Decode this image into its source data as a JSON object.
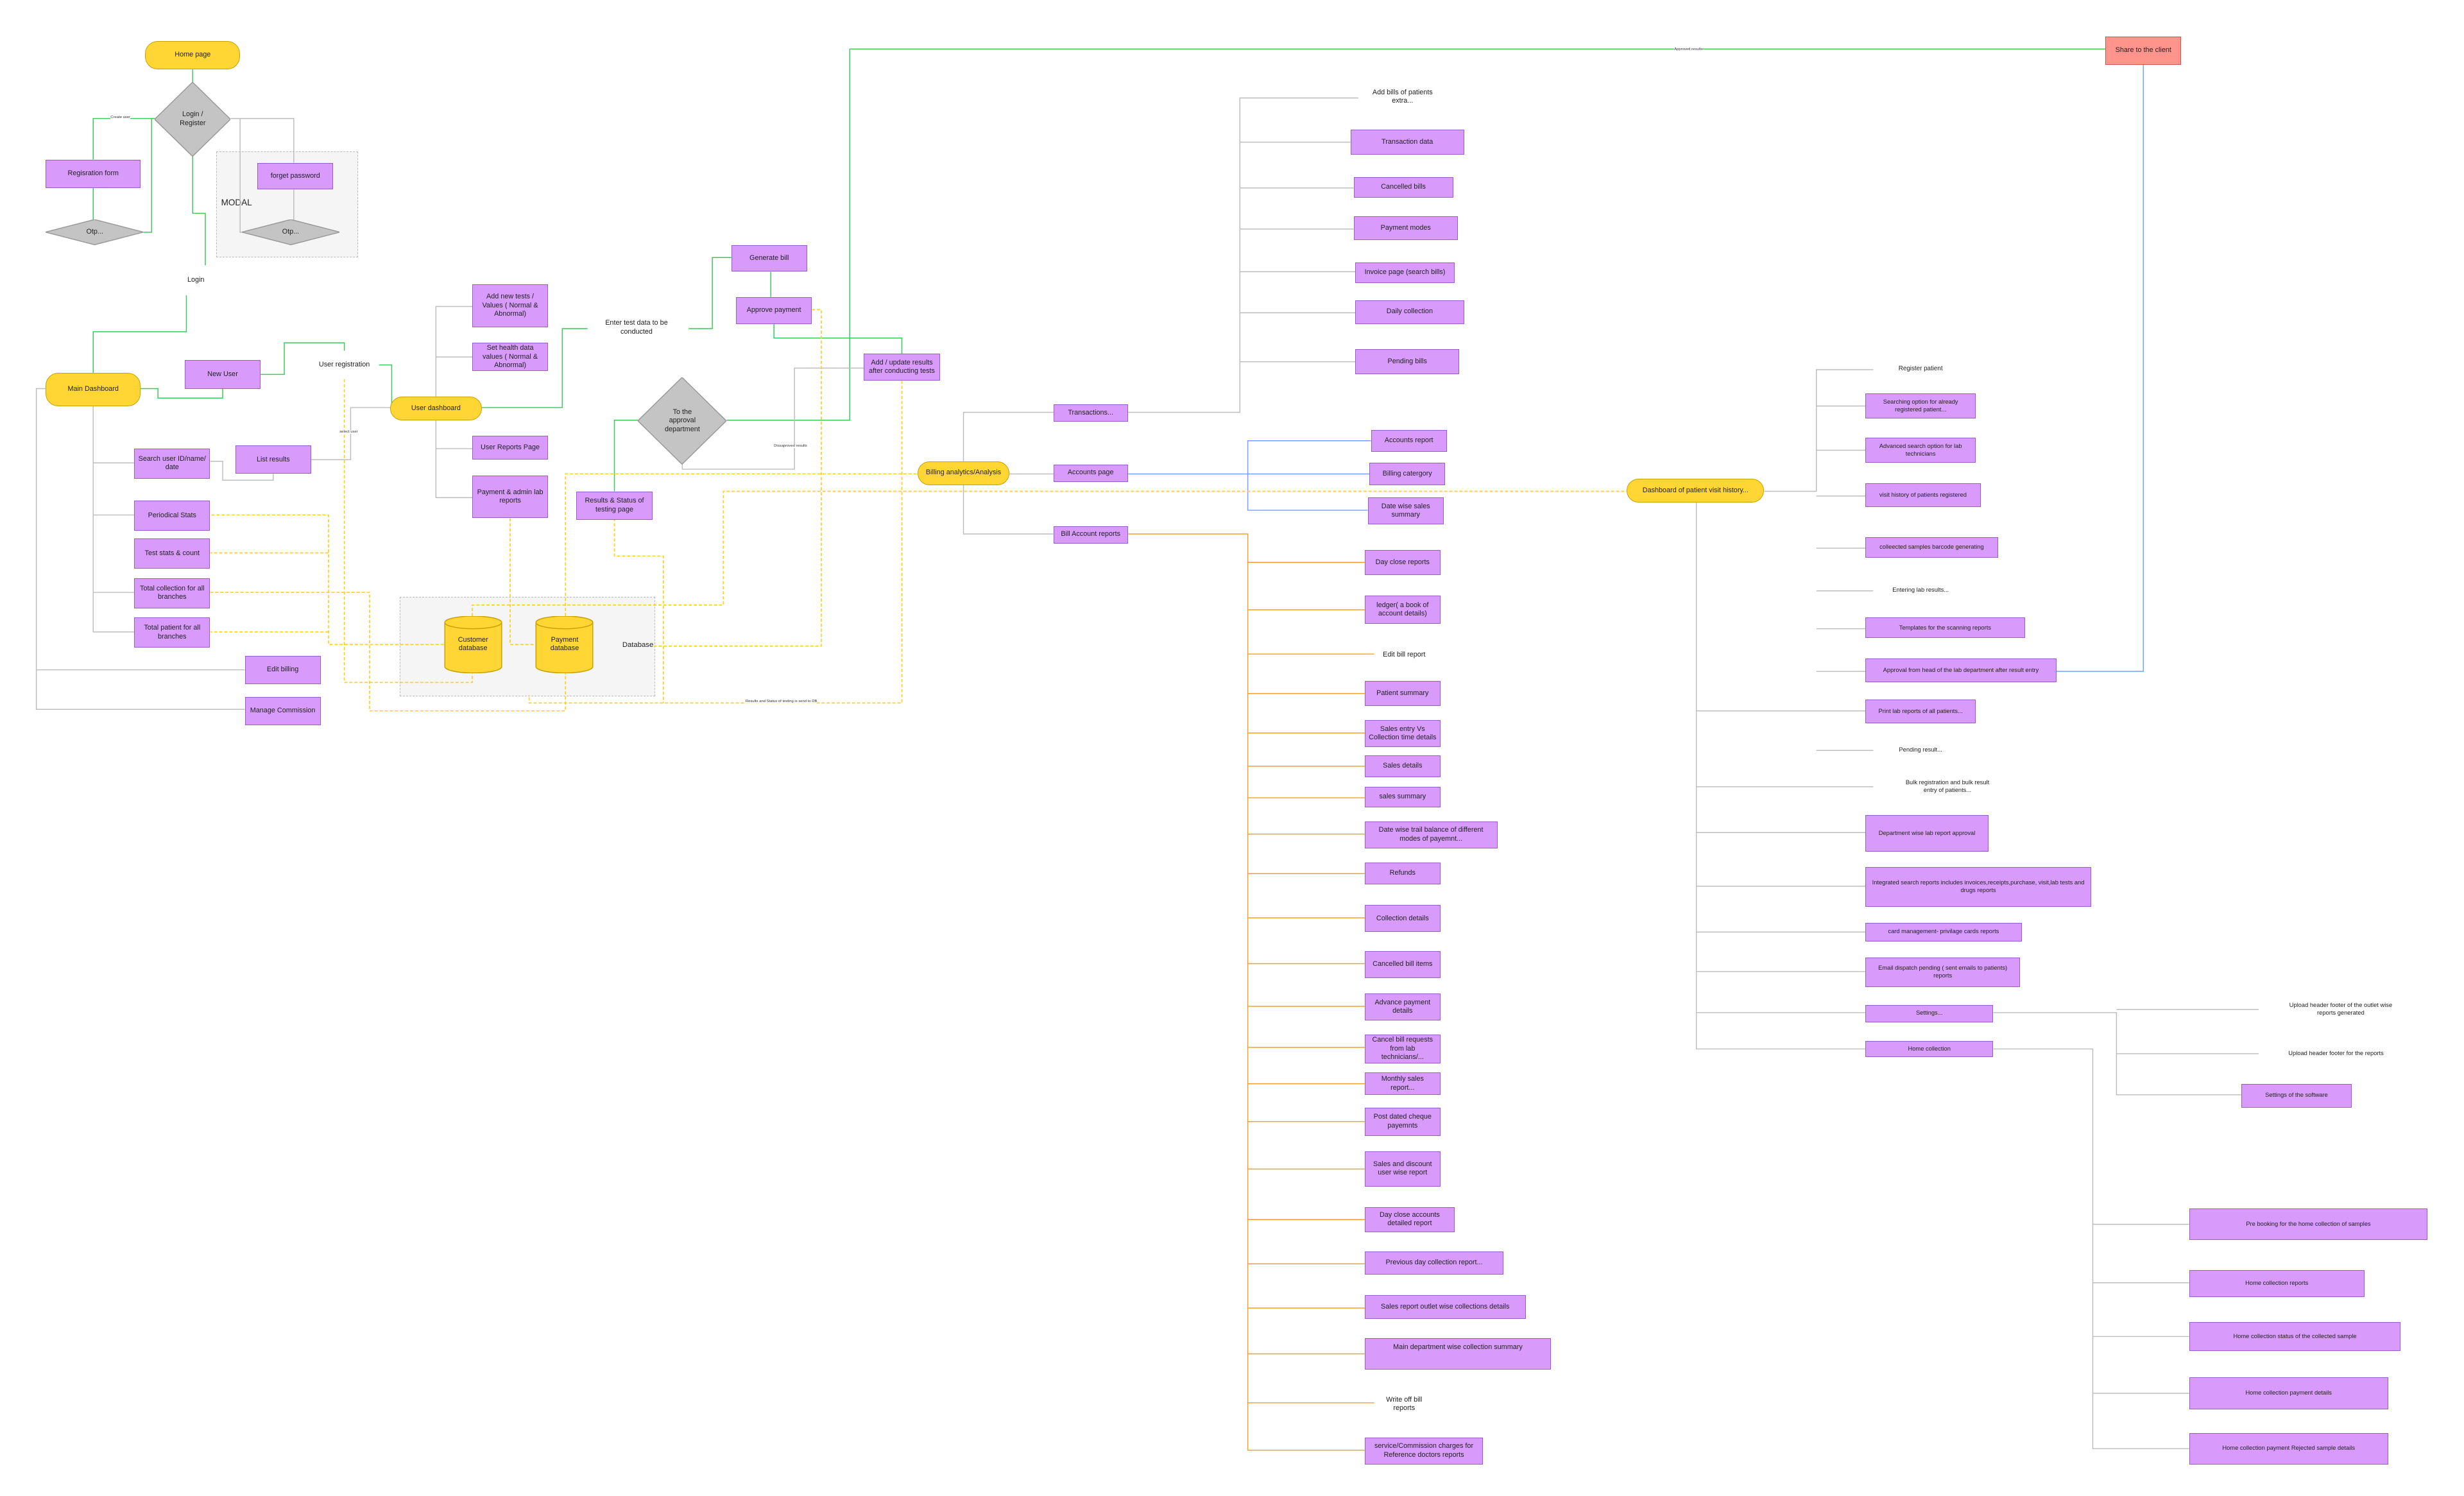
{
  "colors": {
    "process": "#d99bfb",
    "terminal": "#ffd633",
    "input_output": "#86b7ff",
    "decision": "#c4c4c4",
    "output": "#ff948c",
    "flow_green": "#3cc85a",
    "flow_gray": "#bdbdbd",
    "flow_orange": "#f0a030",
    "flow_blue": "#70a3ff",
    "data_flow_yellow_dashed": "#ffcf26"
  },
  "groups": {
    "modal": "MODAL",
    "database": "Database"
  },
  "edge_labels": {
    "create_user": "Create user",
    "select_user": "select user",
    "disapproved": "Dissaproved results",
    "results_db": "Results and Status of testing is send to DB",
    "approved": "Approved results"
  },
  "nodes": {
    "home": "Home page",
    "login_register": "Login / Register",
    "registration_form": "Regisration form",
    "otp1": "Otp...",
    "forgot_password": "forget password",
    "otp2": "Otp...",
    "login": "Login",
    "main_dashboard": "Main Dashboard",
    "new_user": "New User",
    "user_registration": "User registration",
    "user_dashboard": "User dashboard",
    "search_user": "Search user ID/name/ date",
    "list_results": "List results",
    "periodical_stats": "Periodical Stats",
    "test_stats": "Test stats & count",
    "total_collection": "Total collection for all branches",
    "total_patient": "Total patient for all branches",
    "edit_billing": "Edit billing",
    "manage_commission": "Manage Commission",
    "add_new_tests": "Add new tests / Values ( Normal & Abnormal)",
    "set_health": "Set health data values ( Normal & Abnormal)",
    "user_reports": "User Reports Page",
    "payment_admin": "Payment & admin lab reports",
    "enter_test_data": "Enter test data to be conducted",
    "generate_bill": "Generate bill",
    "approve_payment": "Approve payment",
    "add_update_results": "Add / update results after conducting tests",
    "approval_dept": "To the approval department",
    "results_status": "Results & Status of testing page",
    "customer_db": "Customer database",
    "payment_db": "Payment database",
    "share_client": "Share to the client",
    "billing_analytics": "Billing analytics/Analysis",
    "transactions": "Transactions...",
    "accounts_page": "Accounts page",
    "bill_account_reports": "Bill Account reports",
    "add_bills": "Add bills of patients extra...",
    "transaction_data": "Transaction data",
    "cancelled_bills": "Cancelled bills",
    "payment_modes": "Payment modes",
    "invoice_page": "Invoice page (search bills)",
    "daily_collection": "Daily collection",
    "pending_bills": "Pending bills",
    "accounts_report": "Accounts report",
    "billing_category": "Billing catergory",
    "date_wise_sales": "Date wise sales summary",
    "day_close": "Day close reports",
    "ledger": "ledger( a book of account details)",
    "edit_bill_report": "Edit bill report",
    "patient_summary": "Patient summary",
    "sales_entry": "Sales entry Vs Collection time details",
    "sales_details": "Sales details",
    "sales_summary": "sales summary",
    "date_wise_trail": "Date wise trail balance of different modes of payemnt...",
    "refunds": "Refunds",
    "collection_details": "Collection details",
    "cancelled_bill_items": "Cancelled bill items",
    "advance_payment": "Advance payment details",
    "cancel_bill_requests": "Cancel bill requests from lab technicians/...",
    "monthly_sales": "Monthly sales report...",
    "post_dated": "Post dated cheque payemnts",
    "sales_discount": "Sales and discount user wise report",
    "day_close_accounts": "Day close accounts detailed report",
    "previous_day": "Previous day collection report...",
    "sales_outlet": "Sales report outlet wise collections details",
    "main_dept": "Main department wise collection summary",
    "write_off": "Write off bill reports",
    "service_commission": "service/Commission charges  for Reference doctors reports",
    "patient_visit_dashboard": "Dashboard of patient visit history...",
    "register_patient": "Register patient",
    "searching_option": "Searching option for already registered patient...",
    "advanced_search": "Advanced search option for lab technicians",
    "visit_history": "visit history of patients registered",
    "barcode": "colleected samples barcode generating",
    "entering_lab": "Entering lab results...",
    "templates": "Templates for the scanning reports",
    "approval_head": "Approval from head of the lab department after result entry",
    "print_lab": "Print lab reports of all patients...",
    "pending_result": "Pending result...",
    "bulk_registration": "Bulk registration and bulk result entry of patients...",
    "dept_approval": "Department wise lab report approval",
    "integrated_search": "Integrated search reports includes invoices,receipts,purchase, visit,lab tests and drugs  reports",
    "card_management": "card management- privilage cards reports",
    "email_dispatch": "Email dispatch pending ( sent emails to patients) reports",
    "settings": "Settings...",
    "home_collection": "Home collection",
    "upload_outlet": "Upload header footer of the outlet wise reports generated",
    "upload_reports": "Upload header footer for the reports",
    "settings_software": "Settings of the software",
    "pre_booking": "Pre booking for the home collection of samples",
    "home_collection_reports": "Home collection reports",
    "home_collection_status": "Home collection status  of the collected sample",
    "home_collection_payment": "Home collection payment details",
    "home_collection_rejected": "Home collection payment Rejected sample details"
  }
}
